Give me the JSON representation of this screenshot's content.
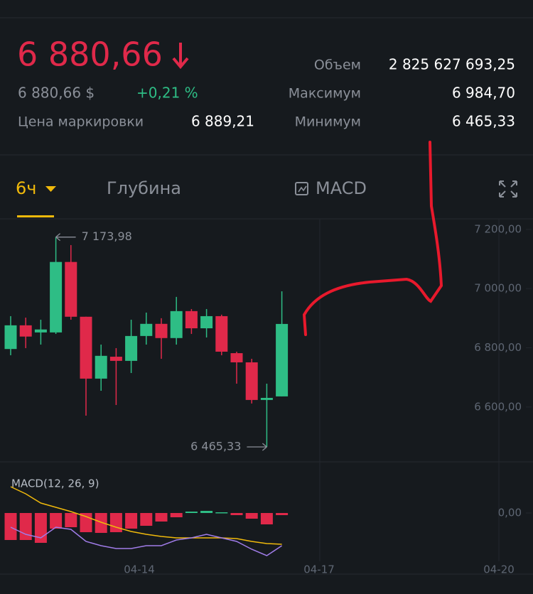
{
  "header": {
    "price": "6 880,66",
    "price_usd": "6 880,66 $",
    "change": "+0,21 %",
    "mark_label": "Цена маркировки",
    "mark_price": "6 889,21",
    "stats": [
      {
        "label": "Объем",
        "value": "2 825 627 693,25"
      },
      {
        "label": "Максимум",
        "value": "6 984,70"
      },
      {
        "label": "Минимум",
        "value": "6 465,33"
      }
    ]
  },
  "tabs": [
    "6ч",
    "Глубина",
    "MACD"
  ],
  "chart_data": {
    "type": "candlestick",
    "ylim": [
      6415,
      7238
    ],
    "yticks": [
      {
        "value": 7200,
        "label": "7 200,00"
      },
      {
        "value": 7000,
        "label": "7 000,00"
      },
      {
        "value": 6800,
        "label": "6 800,00"
      },
      {
        "value": 6600,
        "label": "6 600,00"
      }
    ],
    "up_color": "#2ebd85",
    "down_color": "#e0294a",
    "candles": [
      {
        "open": 6796,
        "high": 6907,
        "low": 6775,
        "close": 6876
      },
      {
        "open": 6876,
        "high": 6902,
        "low": 6799,
        "close": 6838
      },
      {
        "open": 6852,
        "high": 6895,
        "low": 6811,
        "close": 6862
      },
      {
        "open": 6852,
        "high": 7173.98,
        "low": 6847,
        "close": 7090
      },
      {
        "open": 7090,
        "high": 7147,
        "low": 6895,
        "close": 6905
      },
      {
        "open": 6905,
        "high": 6905,
        "low": 6571,
        "close": 6696
      },
      {
        "open": 6696,
        "high": 6811,
        "low": 6655,
        "close": 6773
      },
      {
        "open": 6770,
        "high": 6799,
        "low": 6607,
        "close": 6756
      },
      {
        "open": 6756,
        "high": 6895,
        "low": 6715,
        "close": 6840
      },
      {
        "open": 6840,
        "high": 6919,
        "low": 6811,
        "close": 6881
      },
      {
        "open": 6881,
        "high": 6900,
        "low": 6763,
        "close": 6833
      },
      {
        "open": 6833,
        "high": 6972,
        "low": 6811,
        "close": 6924
      },
      {
        "open": 6924,
        "high": 6931,
        "low": 6847,
        "close": 6866
      },
      {
        "open": 6866,
        "high": 6931,
        "low": 6835,
        "close": 6907
      },
      {
        "open": 6907,
        "high": 6912,
        "low": 6775,
        "close": 6787
      },
      {
        "open": 6782,
        "high": 6787,
        "low": 6679,
        "close": 6751
      },
      {
        "open": 6751,
        "high": 6763,
        "low": 6612,
        "close": 6624
      },
      {
        "open": 6624,
        "high": 6679,
        "low": 6465.33,
        "close": 6631
      },
      {
        "open": 6636,
        "high": 6991,
        "low": 6636,
        "close": 6880.66
      }
    ],
    "max_label": "7 173,98",
    "min_label": "6 465,33",
    "dates": [
      "04-14",
      "04-17",
      "04-20"
    ],
    "macd": {
      "label": "MACD(12, 26, 9)",
      "ylim": [
        -86,
        62
      ],
      "yticks": [
        {
          "value": 0,
          "label": "0,00"
        }
      ],
      "histogram": [
        -38,
        -38,
        -42,
        -22,
        -20,
        -27,
        -28,
        -27,
        -22,
        -18,
        -12,
        -6,
        2,
        3,
        1,
        -3,
        -8,
        -16,
        -3
      ],
      "macd_line": {
        "color": "#f0b90b",
        "values": [
          37,
          27,
          14,
          8,
          2,
          -5,
          -13,
          -20,
          -26,
          -30,
          -33,
          -35,
          -35,
          -35,
          -35,
          -36,
          -40,
          -43,
          -44
        ]
      },
      "signal_line": {
        "color": "#a07ce8",
        "values": [
          -20,
          -30,
          -35,
          -20,
          -23,
          -40,
          -46,
          -50,
          -50,
          -46,
          -46,
          -38,
          -35,
          -30,
          -35,
          -40,
          -51,
          -60,
          -46
        ]
      }
    }
  }
}
